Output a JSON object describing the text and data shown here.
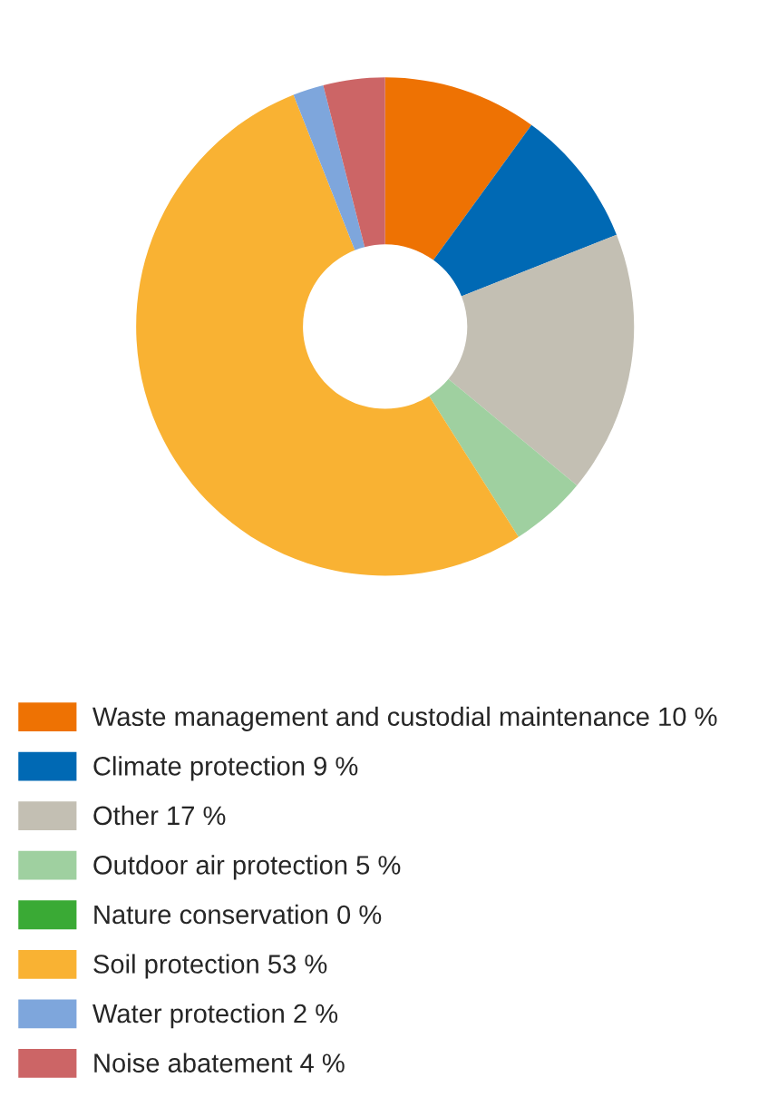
{
  "chart_data": {
    "type": "donut",
    "categories": [
      "Waste management and custodial maintenance 10 %",
      "Climate protection 9 %",
      "Other 17 %",
      "Outdoor air protection 5 %",
      "Nature conservation 0 %",
      "Soil protection 53 %",
      "Water protection 2 %",
      "Noise abatement 4 %"
    ],
    "values": [
      10,
      9,
      17,
      5,
      0,
      53,
      2,
      4
    ],
    "colors": [
      "#ee7203",
      "#0069b4",
      "#c3bfb3",
      "#9fd0a0",
      "#3aaa35",
      "#f9b233",
      "#7ea6dc",
      "#cc6566"
    ],
    "legend": "bottom"
  }
}
